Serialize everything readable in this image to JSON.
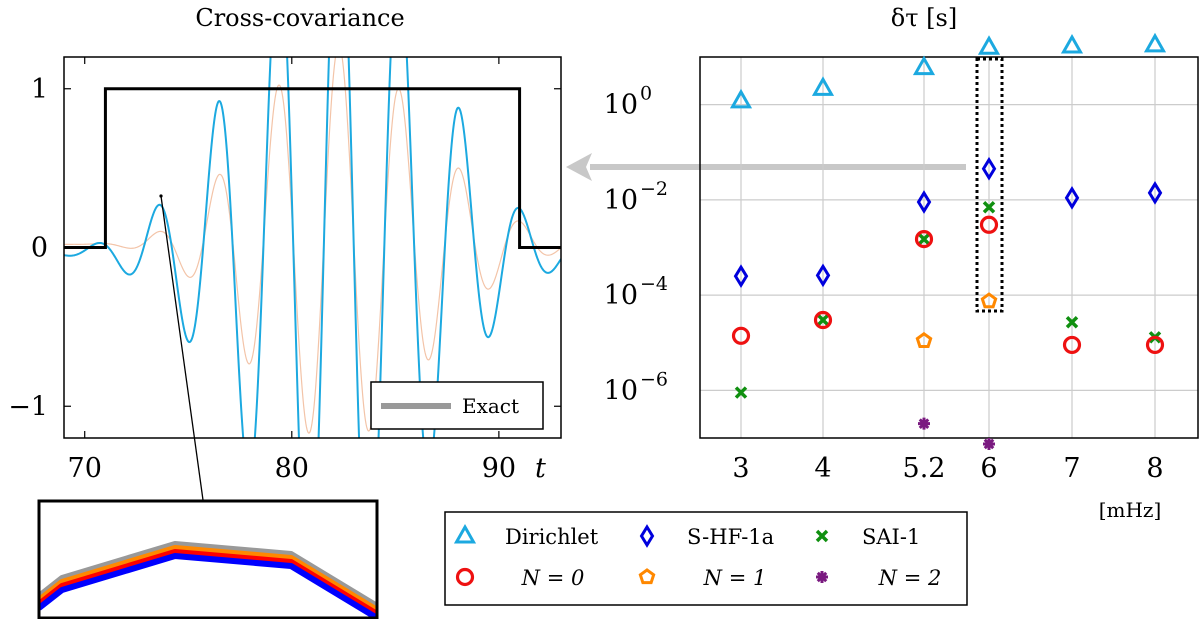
{
  "chart_data": [
    {
      "type": "line",
      "title": "Cross-covariance",
      "xlabel": "t",
      "ylabel": "",
      "xlim": [
        69,
        93
      ],
      "ylim": [
        -1.2,
        1.2
      ],
      "x_ticks": [
        "70",
        "80",
        "90"
      ],
      "y_ticks": [
        "1",
        "0",
        "−1"
      ],
      "legend": {
        "position": "bottom-right",
        "entries": [
          "Exact"
        ]
      },
      "series": [
        {
          "name": "Exact",
          "color": "#000000",
          "x": [
            69,
            71,
            71,
            91,
            91,
            93
          ],
          "y": [
            0,
            0,
            1,
            1,
            0,
            0
          ]
        }
      ],
      "inset": {
        "description_colors": [
          "#999999",
          "#ff8800",
          "#ff0000",
          "#0000ff"
        ]
      }
    },
    {
      "type": "scatter",
      "title": "δτ [s]",
      "xlabel": "[mHz]",
      "y_scale": "log",
      "ylim": [
        1e-07,
        10.0
      ],
      "categories": [
        "3",
        "4",
        "5.2",
        "6",
        "7",
        "8"
      ],
      "y_ticks": [
        {
          "base": "10",
          "exp": "0",
          "value": 1
        },
        {
          "base": "10",
          "exp": "−2",
          "value": 0.01
        },
        {
          "base": "10",
          "exp": "−4",
          "value": 0.0001
        },
        {
          "base": "10",
          "exp": "−6",
          "value": 1e-06
        }
      ],
      "series": [
        {
          "name": "Dirichlet",
          "marker": "triangle",
          "color": "#1ca9e0",
          "values": [
            1.2,
            2.2,
            6.0,
            16,
            17,
            18
          ]
        },
        {
          "name": "S-HF-1a",
          "marker": "diamond",
          "color": "#0000dd",
          "values": [
            0.00025,
            0.00026,
            0.009,
            0.045,
            0.011,
            0.014
          ]
        },
        {
          "name": "SAI-1",
          "marker": "x",
          "color": "#109010",
          "values": [
            9e-07,
            3e-05,
            0.0015,
            0.007,
            2.7e-05,
            1.3e-05
          ]
        },
        {
          "name": "N = 0",
          "marker": "circle",
          "color": "#ee1111",
          "values": [
            1.4e-05,
            3e-05,
            0.0015,
            0.003,
            9e-06,
            9e-06
          ]
        },
        {
          "name": "N = 1",
          "marker": "pentagon",
          "color": "#ff8800",
          "values": [
            null,
            null,
            1.1e-05,
            7.5e-05,
            null,
            null
          ]
        },
        {
          "name": "N = 2",
          "marker": "star",
          "color": "#7a1a80",
          "values": [
            null,
            null,
            2e-07,
            7.5e-08,
            null,
            null
          ]
        }
      ],
      "highlight_category": "6",
      "legend": {
        "position": "bottom",
        "columns": 3
      }
    }
  ]
}
